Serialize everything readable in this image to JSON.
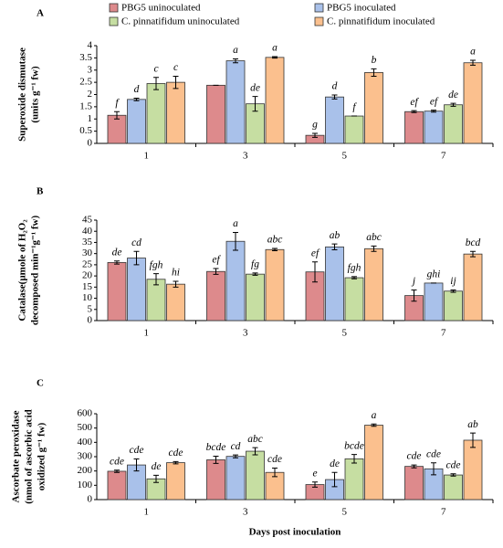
{
  "chart_data": [
    {
      "type": "bar",
      "panel": "A",
      "ylabel": [
        "Superoxide dismutase",
        "(units g⁻¹ fw)"
      ],
      "categories": [
        "1",
        "3",
        "5",
        "7"
      ],
      "legend": true,
      "ylim": [
        0,
        4
      ],
      "yticks": [
        0,
        0.5,
        1,
        1.5,
        2,
        2.5,
        3,
        3.5,
        4
      ],
      "series": [
        {
          "name": "PBG5 uninoculated",
          "color": "#dd8a8c",
          "values": [
            1.15,
            2.38,
            0.33,
            1.3
          ],
          "errors": [
            0.15,
            0,
            0.08,
            0.04
          ],
          "letters": [
            "f",
            null,
            "g",
            "ef"
          ]
        },
        {
          "name": "PBG5 inoculated",
          "color": "#a9c1ea",
          "values": [
            1.8,
            3.38,
            1.9,
            1.32
          ],
          "errors": [
            0.05,
            0.08,
            0.08,
            0.04
          ],
          "letters": [
            "d",
            "a",
            "d",
            "ef"
          ]
        },
        {
          "name": "C. pinnatifidum uninoculated",
          "color": "#c6dea2",
          "values": [
            2.45,
            1.62,
            1.12,
            1.58
          ],
          "errors": [
            0.25,
            0.3,
            0,
            0.06
          ],
          "letters": [
            "c",
            "de",
            "f",
            "de"
          ]
        },
        {
          "name": "C. pinnatifidum inoculated",
          "color": "#fbc08e",
          "values": [
            2.5,
            3.52,
            2.9,
            3.3
          ],
          "errors": [
            0.25,
            0.03,
            0.15,
            0.1
          ],
          "letters": [
            "c",
            "a",
            "b",
            "a"
          ]
        }
      ]
    },
    {
      "type": "bar",
      "panel": "B",
      "ylabel": [
        "Catalase(µmole of H₂O₂",
        "decomposed min⁻¹g⁻¹ fw)"
      ],
      "categories": [
        "1",
        "3",
        "5",
        "7"
      ],
      "ylim": [
        0,
        45
      ],
      "yticks": [
        0,
        5,
        10,
        15,
        20,
        25,
        30,
        35,
        40,
        45
      ],
      "series": [
        {
          "color": "#dd8a8c",
          "values": [
            26,
            22,
            21.8,
            11.2
          ],
          "errors": [
            0.7,
            1.3,
            4.5,
            2.5
          ],
          "letters": [
            "de",
            "ef",
            "ef",
            "j"
          ]
        },
        {
          "color": "#a9c1ea",
          "values": [
            28,
            35.5,
            33,
            16.8
          ],
          "errors": [
            3,
            4,
            1.3,
            0
          ],
          "letters": [
            "cd",
            "a",
            "ab",
            "ghi"
          ]
        },
        {
          "color": "#c6dea2",
          "values": [
            18.5,
            20.8,
            19.2,
            13.2
          ],
          "errors": [
            2.5,
            0.5,
            0.5,
            0.5
          ],
          "letters": [
            "fgh",
            "fg",
            "fgh",
            "ij"
          ]
        },
        {
          "color": "#fbc08e",
          "values": [
            16.3,
            31.8,
            32.2,
            29.8
          ],
          "errors": [
            1.3,
            0.5,
            1.2,
            1.2
          ],
          "letters": [
            "hi",
            "abc",
            "abc",
            "bcd"
          ]
        }
      ]
    },
    {
      "type": "bar",
      "panel": "C",
      "ylabel": [
        "Ascorbate peroxidase",
        "(nmol of ascorbic acid",
        "oxidized g⁻¹ fw)"
      ],
      "categories": [
        "1",
        "3",
        "5",
        "7"
      ],
      "xlabel": "Days post inoculation",
      "ylim": [
        0,
        600
      ],
      "yticks": [
        0,
        100,
        200,
        300,
        400,
        500,
        600
      ],
      "series": [
        {
          "color": "#dd8a8c",
          "values": [
            198,
            278,
            105,
            232
          ],
          "errors": [
            8,
            25,
            18,
            10
          ],
          "letters": [
            "cde",
            "bcde",
            "e",
            "cde"
          ]
        },
        {
          "color": "#a9c1ea",
          "values": [
            242,
            302,
            140,
            215
          ],
          "errors": [
            42,
            10,
            50,
            42
          ],
          "letters": [
            "cde",
            "cd",
            "de",
            "cde"
          ]
        },
        {
          "color": "#c6dea2",
          "values": [
            145,
            338,
            285,
            172
          ],
          "errors": [
            25,
            25,
            30,
            8
          ],
          "letters": [
            "de",
            "abc",
            "bcde",
            "cde"
          ]
        },
        {
          "color": "#fbc08e",
          "values": [
            258,
            190,
            520,
            415
          ],
          "errors": [
            8,
            30,
            8,
            50
          ],
          "letters": [
            "cde",
            "cde",
            "a",
            "ab"
          ]
        }
      ]
    }
  ]
}
